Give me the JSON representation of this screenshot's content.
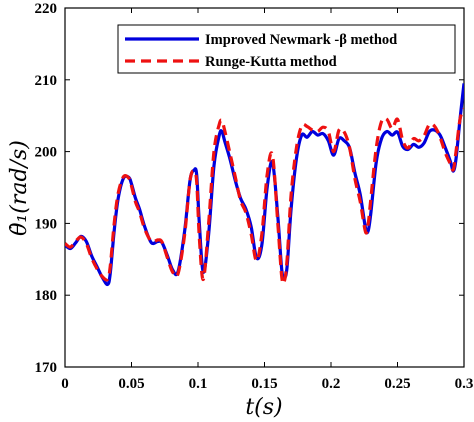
{
  "chart_data": {
    "type": "line",
    "xlabel": "t(s)",
    "ylabel": "θ̇₁(rad/s)",
    "xlim": [
      0,
      0.3
    ],
    "ylim": [
      170,
      220
    ],
    "xticks": [
      0,
      0.05,
      0.1,
      0.15,
      0.2,
      0.25,
      0.3
    ],
    "xtick_labels": [
      "0",
      "0.05",
      "0.1",
      "0.15",
      "0.2",
      "0.25",
      "0.3"
    ],
    "yticks": [
      170,
      180,
      190,
      200,
      210,
      220
    ],
    "ytick_labels": [
      "170",
      "180",
      "190",
      "200",
      "210",
      "220"
    ],
    "grid": false,
    "legend": "top-right",
    "series": [
      {
        "name": "Improved Newmark -β method",
        "color": "#0000dd",
        "style": "solid",
        "x": [
          0,
          0.004,
          0.008,
          0.012,
          0.016,
          0.02,
          0.024,
          0.028,
          0.032,
          0.034,
          0.037,
          0.04,
          0.044,
          0.048,
          0.05,
          0.053,
          0.056,
          0.06,
          0.065,
          0.07,
          0.073,
          0.077,
          0.081,
          0.085,
          0.09,
          0.094,
          0.097,
          0.099,
          0.101,
          0.104,
          0.108,
          0.112,
          0.116,
          0.118,
          0.12,
          0.124,
          0.128,
          0.132,
          0.136,
          0.14,
          0.144,
          0.148,
          0.152,
          0.156,
          0.16,
          0.163,
          0.165,
          0.167,
          0.17,
          0.174,
          0.178,
          0.182,
          0.186,
          0.19,
          0.194,
          0.198,
          0.202,
          0.206,
          0.21,
          0.214,
          0.218,
          0.222,
          0.226,
          0.228,
          0.23,
          0.234,
          0.238,
          0.242,
          0.246,
          0.25,
          0.254,
          0.258,
          0.262,
          0.266,
          0.27,
          0.274,
          0.278,
          0.282,
          0.286,
          0.29,
          0.292,
          0.294,
          0.297,
          0.3
        ],
        "y": [
          187,
          186.5,
          187.3,
          188.2,
          187.5,
          185.5,
          184,
          182.5,
          181.5,
          183,
          189,
          193.5,
          196.3,
          196.4,
          195.5,
          193.5,
          192,
          189.5,
          187.3,
          187.5,
          187.3,
          185.5,
          183.5,
          183.3,
          189,
          196,
          197.4,
          196.8,
          190,
          183.2,
          188.5,
          198,
          202.3,
          202.8,
          201.5,
          199,
          196,
          193.5,
          192,
          189.5,
          185.2,
          187,
          195,
          198.5,
          191,
          183.5,
          182.5,
          184,
          192,
          199,
          202.3,
          202,
          202.8,
          202.3,
          202.5,
          201.5,
          199.5,
          201.8,
          201.5,
          200.5,
          197,
          194,
          189.3,
          189,
          191.5,
          198.5,
          201.8,
          202.8,
          202.3,
          202.7,
          200.7,
          200.3,
          201,
          200.6,
          201.2,
          202.8,
          203,
          202.3,
          200.5,
          198.5,
          197.3,
          199,
          204.5,
          209.5
        ]
      },
      {
        "name": "Runge-Kutta method",
        "color": "#ee1111",
        "style": "dashed",
        "x": [
          0,
          0.004,
          0.008,
          0.012,
          0.016,
          0.02,
          0.024,
          0.028,
          0.032,
          0.034,
          0.037,
          0.04,
          0.044,
          0.048,
          0.05,
          0.053,
          0.056,
          0.06,
          0.065,
          0.07,
          0.073,
          0.077,
          0.081,
          0.085,
          0.09,
          0.094,
          0.097,
          0.099,
          0.101,
          0.104,
          0.108,
          0.112,
          0.116,
          0.118,
          0.12,
          0.124,
          0.128,
          0.132,
          0.136,
          0.14,
          0.144,
          0.148,
          0.152,
          0.156,
          0.16,
          0.163,
          0.165,
          0.167,
          0.17,
          0.174,
          0.178,
          0.182,
          0.186,
          0.19,
          0.194,
          0.198,
          0.202,
          0.206,
          0.21,
          0.214,
          0.218,
          0.222,
          0.226,
          0.228,
          0.23,
          0.234,
          0.238,
          0.242,
          0.246,
          0.25,
          0.254,
          0.258,
          0.262,
          0.266,
          0.27,
          0.274,
          0.278,
          0.282,
          0.286,
          0.29,
          0.292,
          0.294,
          0.297,
          0.3
        ],
        "y": [
          187.2,
          186.7,
          187.5,
          188.1,
          187.2,
          185.2,
          183.7,
          182.6,
          182.2,
          184,
          190,
          194.2,
          196.5,
          196.3,
          195.2,
          193,
          191.6,
          189.2,
          187.5,
          187.7,
          187.4,
          185.2,
          183.2,
          183,
          188.5,
          196,
          197.3,
          195.8,
          188,
          182.2,
          190,
          200,
          203.8,
          204.3,
          203,
          199.8,
          196.5,
          193.2,
          191.5,
          188.5,
          184.8,
          188.5,
          196.8,
          199.5,
          190,
          182.5,
          182,
          185,
          194,
          200.5,
          203.6,
          203.5,
          203,
          202.8,
          203.4,
          202.8,
          200,
          203,
          202.7,
          200.5,
          196.2,
          193,
          188.8,
          190,
          193.5,
          200.5,
          204.2,
          204.5,
          203.2,
          204.5,
          201.5,
          200.5,
          201.8,
          201.5,
          202.2,
          203.8,
          203.5,
          202,
          199.8,
          198.2,
          197.5,
          200,
          204.5,
          206
        ]
      }
    ]
  }
}
